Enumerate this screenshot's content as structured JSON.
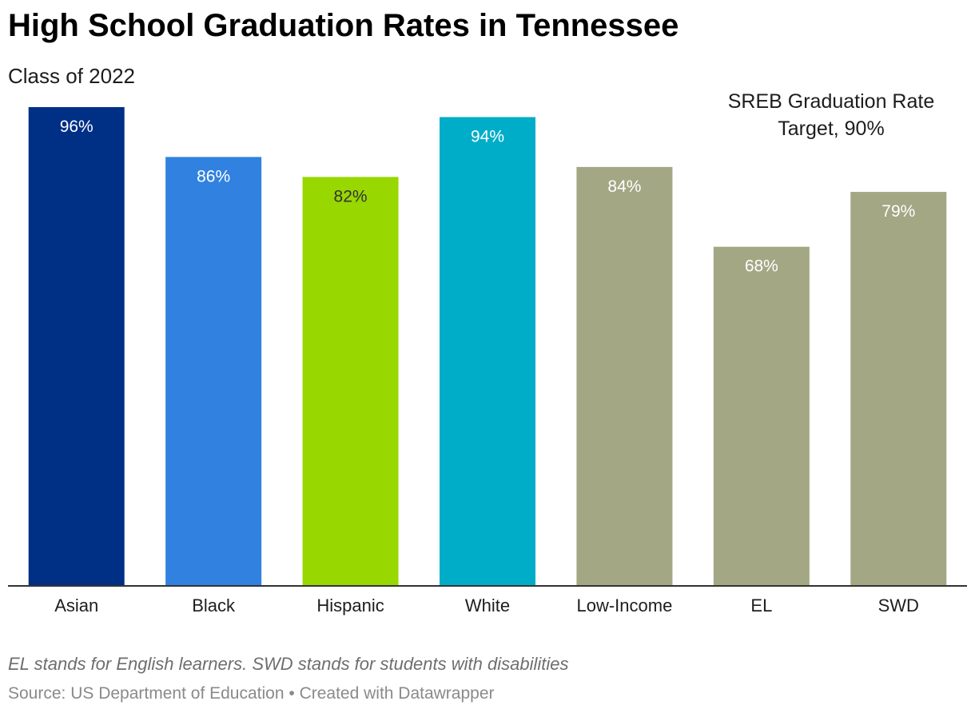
{
  "title": "High School Graduation Rates in Tennessee",
  "subtitle": "Class of 2022",
  "annotation": {
    "line1": "SREB Graduation Rate",
    "line2": "Target, 90%"
  },
  "footer": {
    "note": "EL stands for English learners. SWD stands for students with disabilities",
    "source_label": "Source: US Department of Education",
    "separator": "•",
    "credit": "Created with Datawrapper"
  },
  "chart_data": {
    "type": "bar",
    "categories": [
      "Asian",
      "Black",
      "Hispanic",
      "White",
      "Low-Income",
      "EL",
      "SWD"
    ],
    "values": [
      96,
      86,
      82,
      94,
      84,
      68,
      79
    ],
    "value_labels": [
      "96%",
      "86%",
      "82%",
      "94%",
      "84%",
      "68%",
      "79%"
    ],
    "colors": [
      "#002f86",
      "#3182e0",
      "#98d700",
      "#00adc8",
      "#a3a784",
      "#a3a784",
      "#a3a784"
    ],
    "ylim": [
      0,
      96
    ],
    "grid": false,
    "xlabel": "",
    "ylabel": ""
  }
}
